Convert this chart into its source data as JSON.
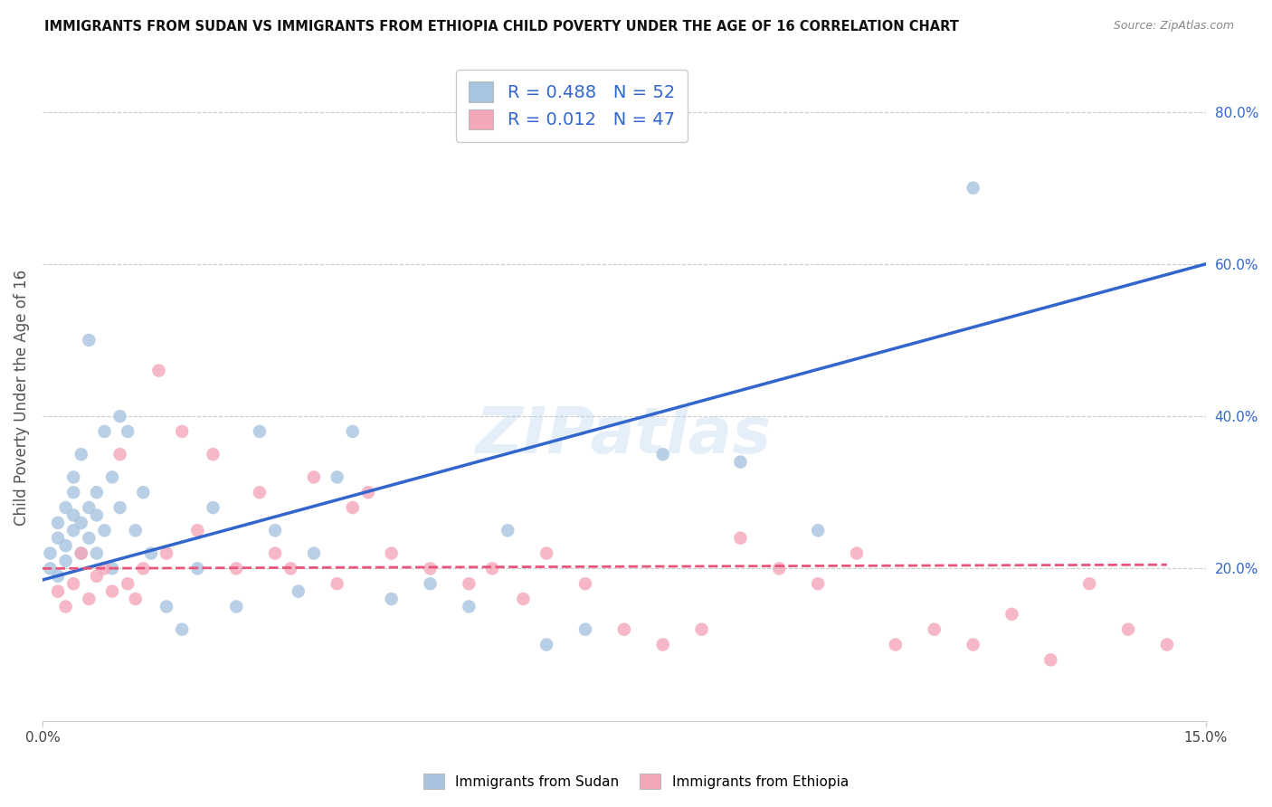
{
  "title": "IMMIGRANTS FROM SUDAN VS IMMIGRANTS FROM ETHIOPIA CHILD POVERTY UNDER THE AGE OF 16 CORRELATION CHART",
  "source": "Source: ZipAtlas.com",
  "ylabel": "Child Poverty Under the Age of 16",
  "xlim": [
    0.0,
    0.15
  ],
  "ylim": [
    0.0,
    0.85
  ],
  "ytick_positions_right": [
    0.2,
    0.4,
    0.6,
    0.8
  ],
  "grid_color": "#cccccc",
  "background_color": "#ffffff",
  "watermark": "ZIPatlas",
  "sudan_color": "#a8c4e0",
  "ethiopia_color": "#f4a7b9",
  "sudan_line_color": "#3366cc",
  "ethiopia_line_color": "#e8547a",
  "sudan_R": 0.488,
  "sudan_N": 52,
  "ethiopia_R": 0.012,
  "ethiopia_N": 47,
  "sudan_x": [
    0.001,
    0.001,
    0.002,
    0.002,
    0.002,
    0.003,
    0.003,
    0.003,
    0.004,
    0.004,
    0.004,
    0.004,
    0.005,
    0.005,
    0.005,
    0.006,
    0.006,
    0.006,
    0.007,
    0.007,
    0.007,
    0.008,
    0.008,
    0.009,
    0.009,
    0.01,
    0.01,
    0.011,
    0.012,
    0.013,
    0.014,
    0.016,
    0.018,
    0.02,
    0.022,
    0.025,
    0.028,
    0.03,
    0.033,
    0.035,
    0.038,
    0.04,
    0.045,
    0.05,
    0.055,
    0.06,
    0.065,
    0.07,
    0.08,
    0.09,
    0.1,
    0.12
  ],
  "sudan_y": [
    0.2,
    0.22,
    0.24,
    0.26,
    0.19,
    0.21,
    0.28,
    0.23,
    0.27,
    0.3,
    0.25,
    0.32,
    0.26,
    0.22,
    0.35,
    0.5,
    0.28,
    0.24,
    0.3,
    0.22,
    0.27,
    0.38,
    0.25,
    0.32,
    0.2,
    0.28,
    0.4,
    0.38,
    0.25,
    0.3,
    0.22,
    0.15,
    0.12,
    0.2,
    0.28,
    0.15,
    0.38,
    0.25,
    0.17,
    0.22,
    0.32,
    0.38,
    0.16,
    0.18,
    0.15,
    0.25,
    0.1,
    0.12,
    0.35,
    0.34,
    0.25,
    0.7
  ],
  "ethiopia_x": [
    0.002,
    0.003,
    0.004,
    0.005,
    0.006,
    0.007,
    0.008,
    0.009,
    0.01,
    0.011,
    0.012,
    0.013,
    0.015,
    0.016,
    0.018,
    0.02,
    0.022,
    0.025,
    0.028,
    0.03,
    0.032,
    0.035,
    0.038,
    0.04,
    0.042,
    0.045,
    0.05,
    0.055,
    0.058,
    0.062,
    0.065,
    0.07,
    0.075,
    0.08,
    0.085,
    0.09,
    0.095,
    0.1,
    0.105,
    0.11,
    0.115,
    0.12,
    0.125,
    0.13,
    0.135,
    0.14,
    0.145
  ],
  "ethiopia_y": [
    0.17,
    0.15,
    0.18,
    0.22,
    0.16,
    0.19,
    0.2,
    0.17,
    0.35,
    0.18,
    0.16,
    0.2,
    0.46,
    0.22,
    0.38,
    0.25,
    0.35,
    0.2,
    0.3,
    0.22,
    0.2,
    0.32,
    0.18,
    0.28,
    0.3,
    0.22,
    0.2,
    0.18,
    0.2,
    0.16,
    0.22,
    0.18,
    0.12,
    0.1,
    0.12,
    0.24,
    0.2,
    0.18,
    0.22,
    0.1,
    0.12,
    0.1,
    0.14,
    0.08,
    0.18,
    0.12,
    0.1
  ],
  "legend_sudan_label": "Immigrants from Sudan",
  "legend_ethiopia_label": "Immigrants from Ethiopia"
}
